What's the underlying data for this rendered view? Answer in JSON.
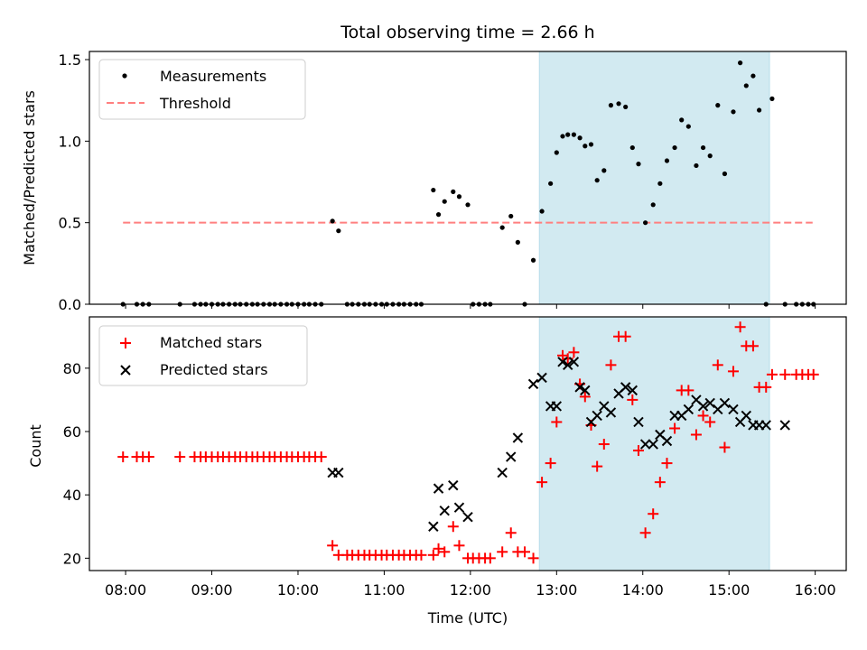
{
  "chart_data": {
    "title": "Total observing time = 2.66 h",
    "xlabel": "Time (UTC)",
    "x_ticks": [
      "08:00",
      "09:00",
      "10:00",
      "11:00",
      "12:00",
      "13:00",
      "14:00",
      "15:00",
      "16:00"
    ],
    "xlim_hours": [
      7.58,
      16.36
    ],
    "highlight_span_hours": [
      12.8,
      15.47
    ],
    "colors": {
      "highlight": "#add8e6",
      "matched": "#ff0000",
      "predicted": "#000000",
      "threshold": "#ff7f7f",
      "measurement": "#000000"
    },
    "panels": [
      {
        "type": "scatter",
        "ylabel": "Matched/Predicted stars",
        "ylim": [
          0,
          1.55
        ],
        "y_ticks": [
          "0.0",
          "0.5",
          "1.0",
          "1.5"
        ],
        "legend": [
          "Measurements",
          "Threshold"
        ],
        "legend_position": "top-left",
        "threshold": {
          "value": 0.5,
          "x_range_hours": [
            7.97,
            15.97
          ]
        },
        "measurements": {
          "x_hours": [
            7.97,
            8.13,
            8.2,
            8.27,
            8.63,
            8.8,
            8.87,
            8.93,
            9.0,
            9.07,
            9.13,
            9.2,
            9.27,
            9.33,
            9.4,
            9.47,
            9.53,
            9.6,
            9.67,
            9.73,
            9.8,
            9.87,
            9.93,
            10.0,
            10.07,
            10.13,
            10.2,
            10.27,
            10.4,
            10.47,
            10.57,
            10.63,
            10.7,
            10.77,
            10.83,
            10.9,
            10.97,
            11.03,
            11.1,
            11.17,
            11.23,
            11.3,
            11.37,
            11.43,
            11.57,
            11.63,
            11.7,
            11.8,
            11.87,
            11.97,
            12.03,
            12.1,
            12.17,
            12.23,
            12.37,
            12.47,
            12.55,
            12.63,
            12.73,
            12.83,
            12.93,
            13.0,
            13.07,
            13.13,
            13.2,
            13.27,
            13.33,
            13.4,
            13.47,
            13.55,
            13.63,
            13.72,
            13.8,
            13.88,
            13.95,
            14.03,
            14.12,
            14.2,
            14.28,
            14.37,
            14.45,
            14.53,
            14.62,
            14.7,
            14.78,
            14.87,
            14.95,
            15.05,
            15.13,
            15.2,
            15.28,
            15.35,
            15.43,
            15.5,
            15.65,
            15.78,
            15.85,
            15.92,
            15.98
          ],
          "y": [
            0,
            0,
            0,
            0,
            0,
            0,
            0,
            0,
            0,
            0,
            0,
            0,
            0,
            0,
            0,
            0,
            0,
            0,
            0,
            0,
            0,
            0,
            0,
            0,
            0,
            0,
            0,
            0,
            0.51,
            0.45,
            0,
            0,
            0,
            0,
            0,
            0,
            0,
            0,
            0,
            0,
            0,
            0,
            0,
            0,
            0.7,
            0.55,
            0.63,
            0.69,
            0.66,
            0.61,
            0,
            0,
            0,
            0,
            0.47,
            0.54,
            0.38,
            0,
            0.27,
            0.57,
            0.74,
            0.93,
            1.03,
            1.04,
            1.04,
            1.02,
            0.97,
            0.98,
            0.76,
            0.82,
            1.22,
            1.23,
            1.21,
            0.96,
            0.86,
            0.5,
            0.61,
            0.74,
            0.88,
            0.96,
            1.13,
            1.09,
            0.85,
            0.96,
            0.91,
            1.22,
            0.8,
            1.18,
            1.48,
            1.34,
            1.4,
            1.19,
            0,
            1.26,
            0,
            0,
            0,
            0,
            0
          ]
        }
      },
      {
        "type": "scatter",
        "ylabel": "Count",
        "ylim": [
          16.1,
          96.2
        ],
        "y_ticks": [
          "20",
          "40",
          "60",
          "80"
        ],
        "legend": [
          "Matched stars",
          "Predicted stars"
        ],
        "legend_position": "top-left",
        "series": [
          {
            "name": "Matched stars",
            "marker": "+",
            "x_hours": [
              7.97,
              8.13,
              8.2,
              8.27,
              8.63,
              8.8,
              8.87,
              8.93,
              9.0,
              9.07,
              9.13,
              9.2,
              9.27,
              9.33,
              9.4,
              9.47,
              9.53,
              9.6,
              9.67,
              9.73,
              9.8,
              9.87,
              9.93,
              10.0,
              10.07,
              10.13,
              10.2,
              10.27,
              10.4,
              10.47,
              10.57,
              10.63,
              10.7,
              10.77,
              10.83,
              10.9,
              10.97,
              11.03,
              11.1,
              11.17,
              11.23,
              11.3,
              11.37,
              11.43,
              11.57,
              11.63,
              11.7,
              11.8,
              11.87,
              11.97,
              12.03,
              12.1,
              12.17,
              12.23,
              12.37,
              12.47,
              12.55,
              12.63,
              12.73,
              12.83,
              12.93,
              13.0,
              13.07,
              13.13,
              13.2,
              13.27,
              13.33,
              13.4,
              13.47,
              13.55,
              13.63,
              13.72,
              13.8,
              13.88,
              13.95,
              14.03,
              14.12,
              14.2,
              14.28,
              14.37,
              14.45,
              14.53,
              14.62,
              14.7,
              14.78,
              14.87,
              14.95,
              15.05,
              15.13,
              15.2,
              15.28,
              15.35,
              15.43,
              15.5,
              15.65,
              15.78,
              15.85,
              15.92,
              15.98
            ],
            "y": [
              52,
              52,
              52,
              52,
              52,
              52,
              52,
              52,
              52,
              52,
              52,
              52,
              52,
              52,
              52,
              52,
              52,
              52,
              52,
              52,
              52,
              52,
              52,
              52,
              52,
              52,
              52,
              52,
              24,
              21,
              21,
              21,
              21,
              21,
              21,
              21,
              21,
              21,
              21,
              21,
              21,
              21,
              21,
              21,
              21,
              23,
              22,
              30,
              24,
              20,
              20,
              20,
              20,
              20,
              22,
              28,
              22,
              22,
              20,
              44,
              50,
              63,
              84,
              83,
              85,
              75,
              71,
              62,
              49,
              56,
              81,
              90,
              90,
              70,
              54,
              28,
              34,
              44,
              50,
              61,
              73,
              73,
              59,
              65,
              63,
              81,
              55,
              79,
              93,
              87,
              87,
              74,
              74,
              78,
              78,
              78,
              78,
              78,
              78
            ]
          },
          {
            "name": "Predicted stars",
            "marker": "x",
            "x_hours": [
              10.4,
              10.47,
              11.57,
              11.63,
              11.7,
              11.8,
              11.87,
              11.97,
              12.37,
              12.47,
              12.55,
              12.73,
              12.83,
              12.93,
              13.0,
              13.07,
              13.13,
              13.2,
              13.27,
              13.33,
              13.4,
              13.47,
              13.55,
              13.63,
              13.72,
              13.8,
              13.88,
              13.95,
              14.03,
              14.12,
              14.2,
              14.28,
              14.37,
              14.45,
              14.53,
              14.62,
              14.7,
              14.78,
              14.87,
              14.95,
              15.05,
              15.13,
              15.2,
              15.28,
              15.35,
              15.43,
              15.65
            ],
            "y": [
              47,
              47,
              30,
              42,
              35,
              43,
              36,
              33,
              47,
              52,
              58,
              75,
              77,
              68,
              68,
              82,
              81,
              82,
              74,
              73,
              63,
              65,
              68,
              66,
              72,
              74,
              73,
              63,
              56,
              56,
              59,
              57,
              65,
              65,
              67,
              70,
              68,
              69,
              67,
              69,
              67,
              63,
              65,
              62,
              62,
              62,
              62
            ]
          }
        ]
      }
    ]
  }
}
